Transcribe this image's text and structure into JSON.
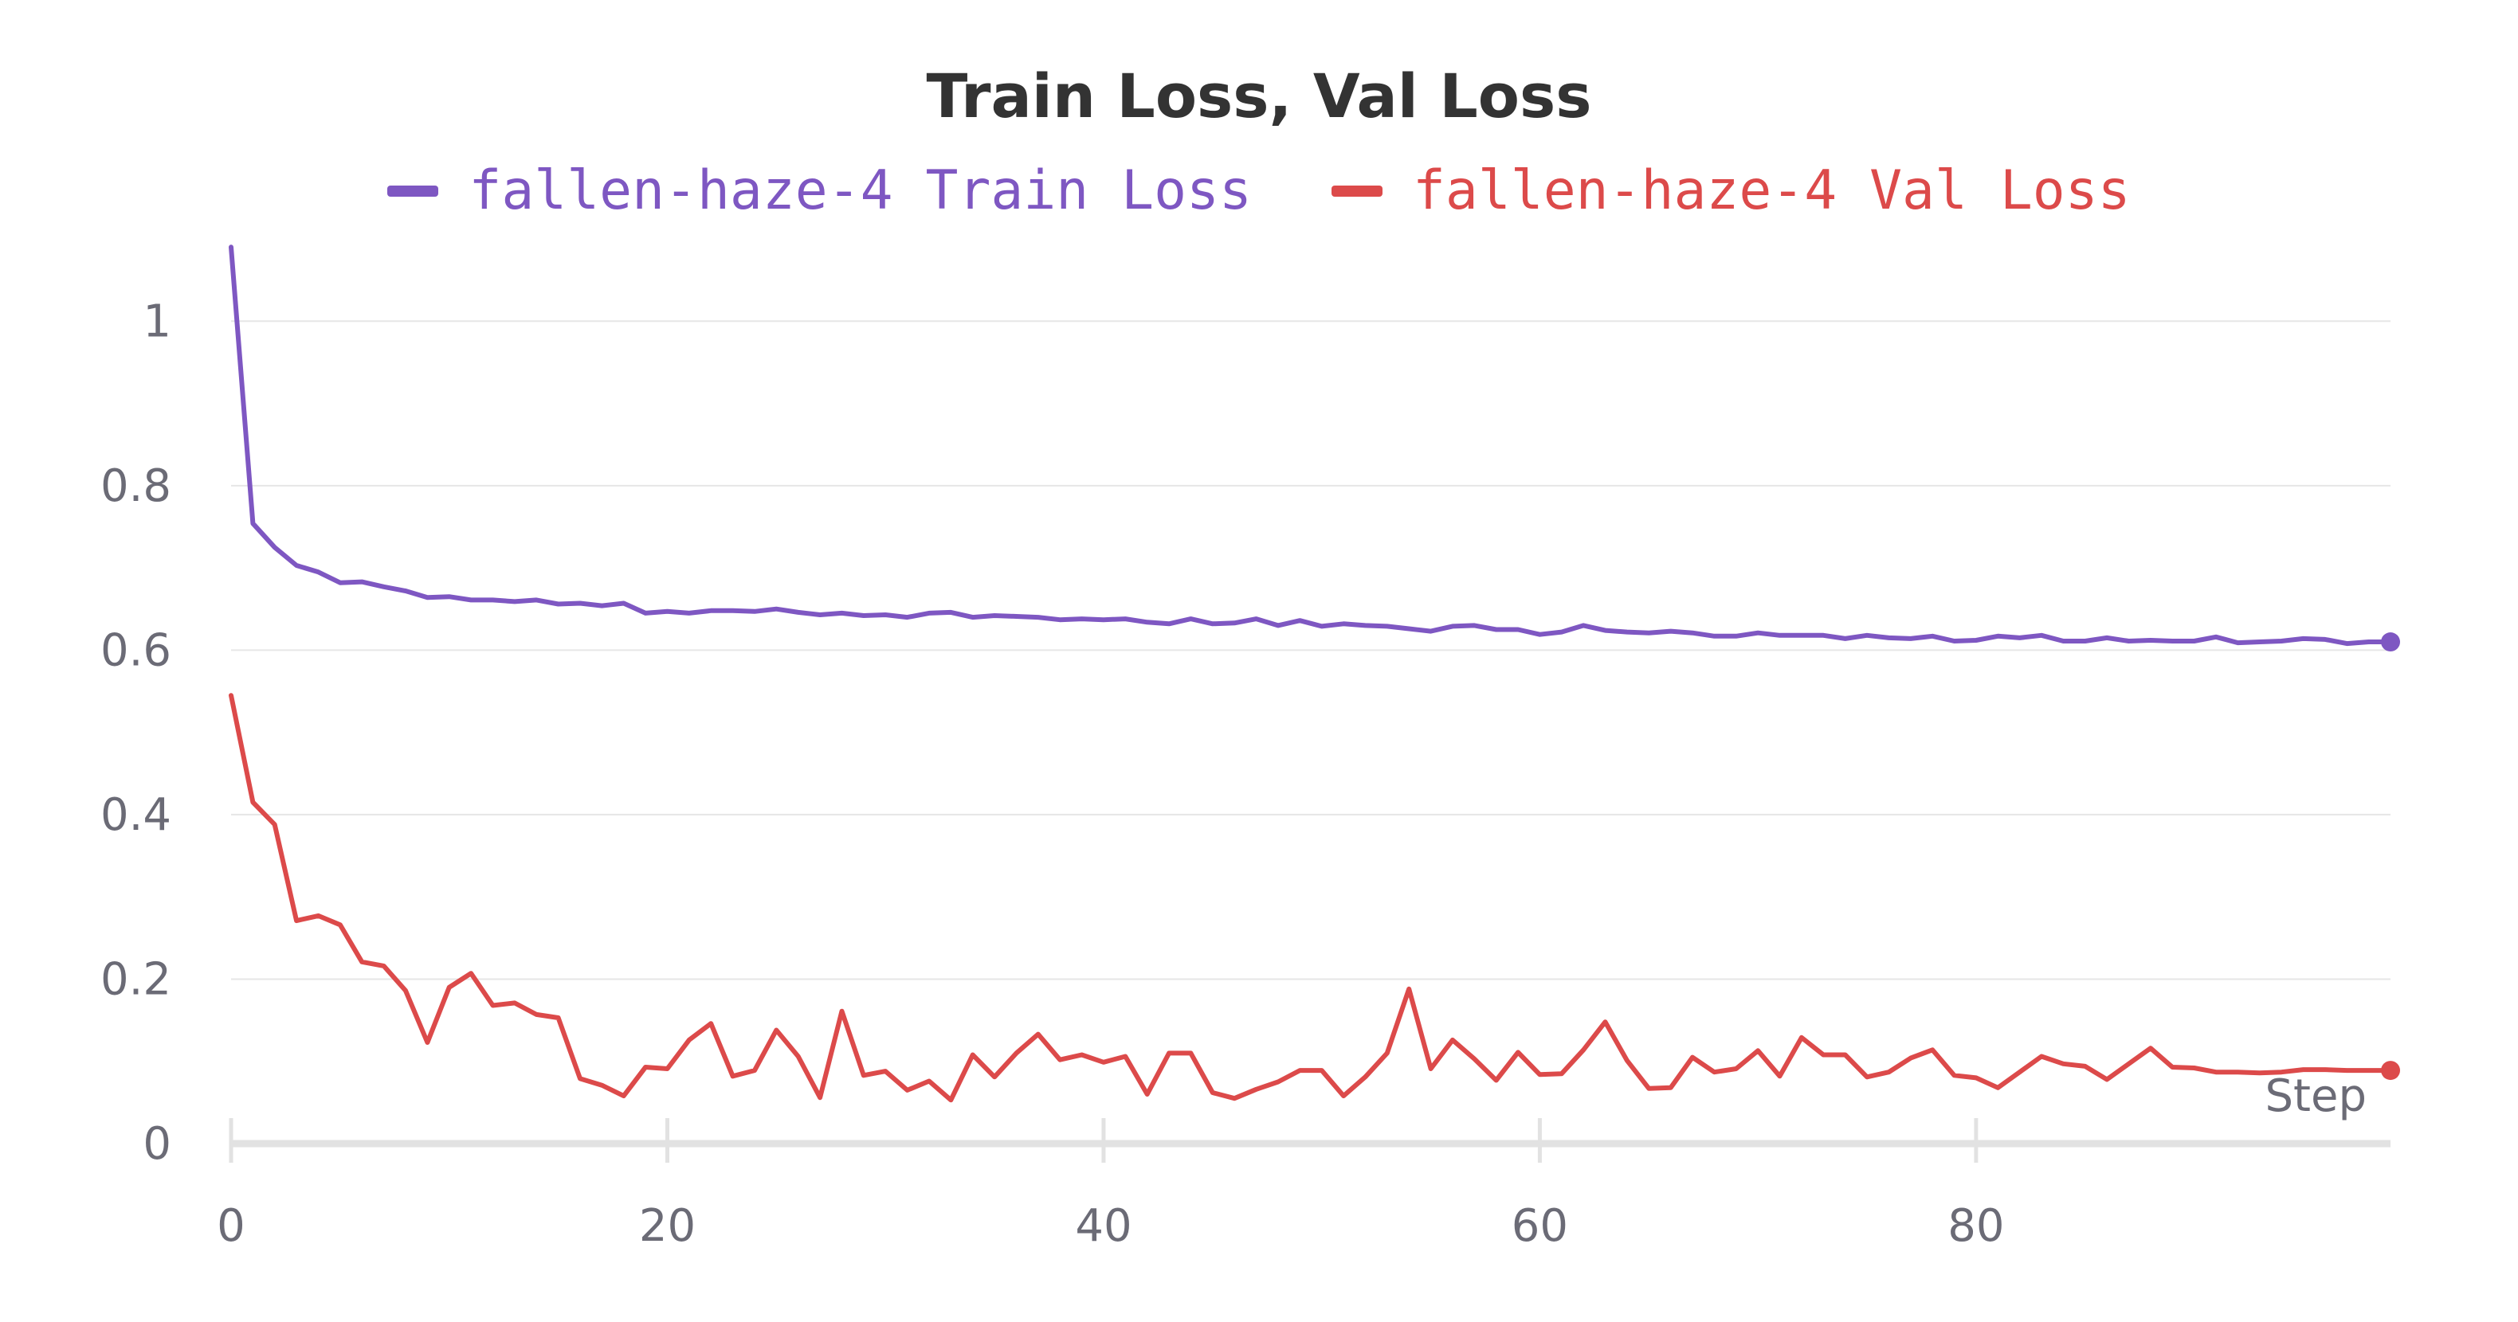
{
  "chart_data": {
    "type": "line",
    "title": "Train Loss, Val Loss",
    "xlabel": "Step",
    "ylabel": "",
    "xlim": [
      0,
      99
    ],
    "ylim": [
      0,
      1.1
    ],
    "xticks": [
      0,
      20,
      40,
      60,
      80
    ],
    "xtick_labels": [
      "0",
      "20",
      "40",
      "60",
      "80"
    ],
    "yticks": [
      0,
      0.2,
      0.4,
      0.6,
      0.8,
      1
    ],
    "ytick_labels": [
      "0",
      "0.2",
      "0.4",
      "0.6",
      "0.8",
      "1"
    ],
    "grid": true,
    "legend_position": "top-center",
    "series": [
      {
        "name": "fallen-haze-4 Train Loss",
        "color": "#7e57c2",
        "values": [
          1.09,
          0.754,
          0.725,
          0.703,
          0.695,
          0.682,
          0.683,
          0.677,
          0.672,
          0.664,
          0.665,
          0.661,
          0.661,
          0.659,
          0.661,
          0.656,
          0.657,
          0.654,
          0.657,
          0.645,
          0.647,
          0.645,
          0.648,
          0.648,
          0.647,
          0.65,
          0.646,
          0.643,
          0.645,
          0.642,
          0.643,
          0.64,
          0.645,
          0.646,
          0.64,
          0.642,
          0.641,
          0.64,
          0.637,
          0.638,
          0.637,
          0.638,
          0.634,
          0.632,
          0.638,
          0.632,
          0.633,
          0.638,
          0.63,
          0.636,
          0.629,
          0.632,
          0.63,
          0.629,
          0.626,
          0.623,
          0.629,
          0.63,
          0.625,
          0.625,
          0.619,
          0.622,
          0.63,
          0.624,
          0.622,
          0.621,
          0.623,
          0.621,
          0.617,
          0.617,
          0.621,
          0.618,
          0.618,
          0.618,
          0.614,
          0.618,
          0.615,
          0.614,
          0.617,
          0.611,
          0.612,
          0.617,
          0.615,
          0.618,
          0.611,
          0.611,
          0.615,
          0.611,
          0.612,
          0.611,
          0.611,
          0.616,
          0.609,
          0.61,
          0.611,
          0.614,
          0.613,
          0.608,
          0.61,
          0.61
        ]
      },
      {
        "name": "fallen-haze-4 Val Loss",
        "color": "#dc4a4a",
        "values": [
          0.545,
          0.415,
          0.388,
          0.271,
          0.277,
          0.266,
          0.221,
          0.216,
          0.186,
          0.123,
          0.19,
          0.207,
          0.168,
          0.171,
          0.157,
          0.153,
          0.079,
          0.071,
          0.058,
          0.093,
          0.091,
          0.126,
          0.146,
          0.082,
          0.089,
          0.138,
          0.106,
          0.056,
          0.161,
          0.083,
          0.088,
          0.065,
          0.076,
          0.053,
          0.108,
          0.081,
          0.11,
          0.133,
          0.102,
          0.108,
          0.099,
          0.106,
          0.06,
          0.11,
          0.11,
          0.062,
          0.055,
          0.066,
          0.075,
          0.089,
          0.089,
          0.058,
          0.081,
          0.11,
          0.188,
          0.091,
          0.126,
          0.103,
          0.077,
          0.111,
          0.084,
          0.085,
          0.114,
          0.148,
          0.101,
          0.067,
          0.068,
          0.105,
          0.087,
          0.091,
          0.113,
          0.082,
          0.129,
          0.108,
          0.108,
          0.081,
          0.087,
          0.104,
          0.114,
          0.083,
          0.08,
          0.068,
          0.087,
          0.106,
          0.097,
          0.094,
          0.078,
          0.097,
          0.116,
          0.093,
          0.092,
          0.087,
          0.087,
          0.086,
          0.087,
          0.09,
          0.09,
          0.089,
          0.089,
          0.089
        ]
      }
    ]
  }
}
